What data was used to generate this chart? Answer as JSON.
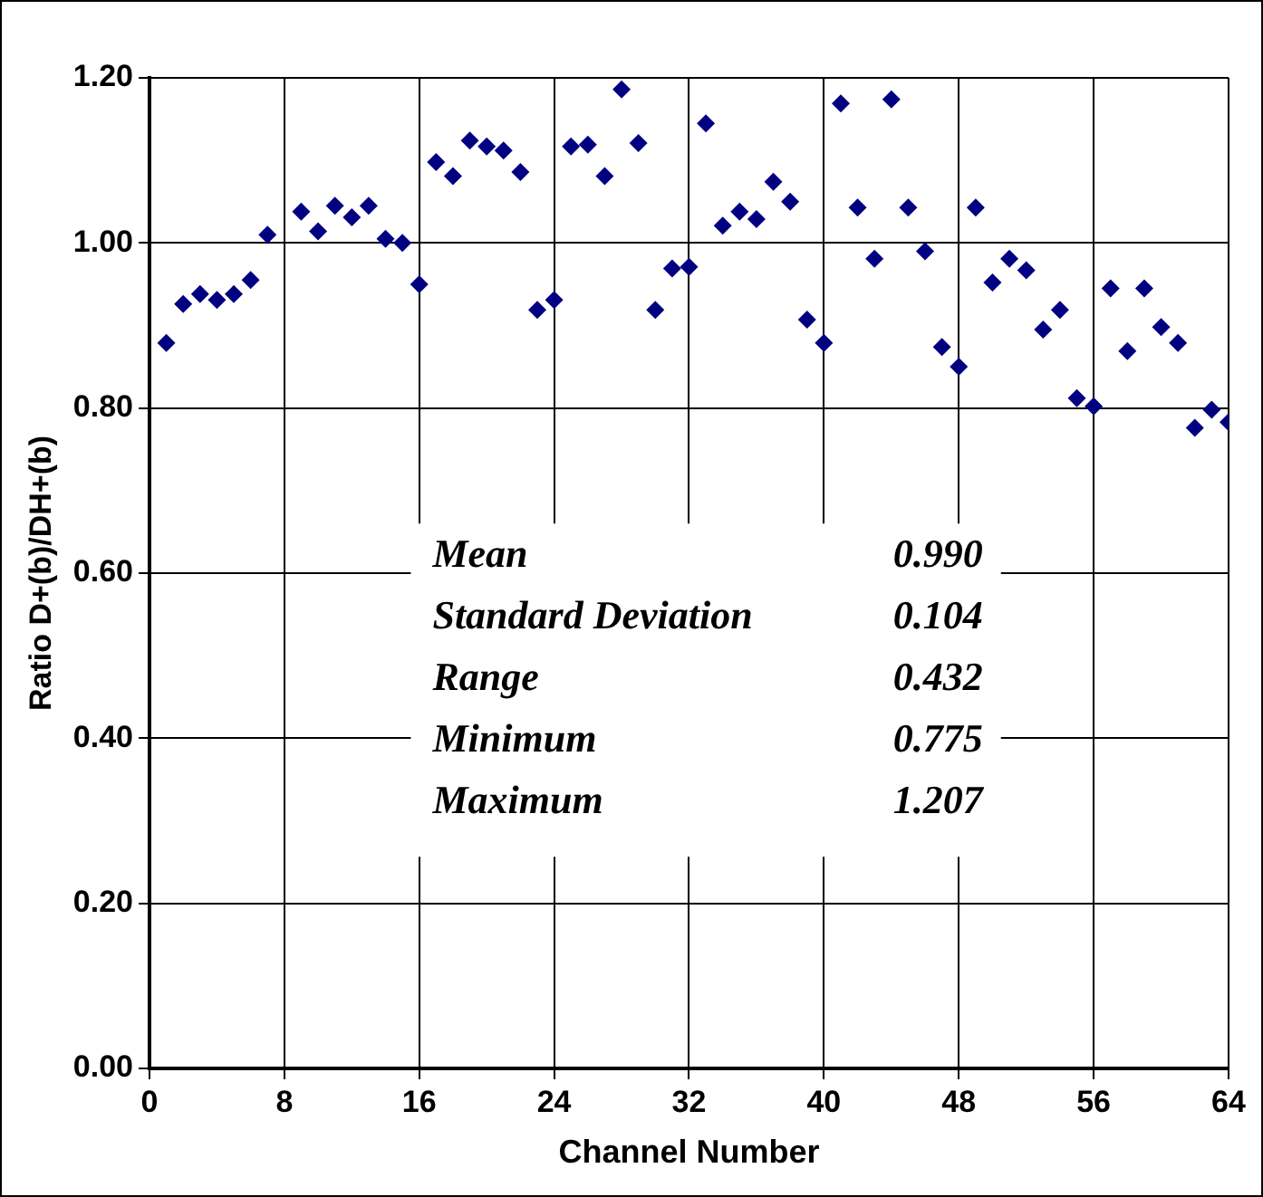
{
  "chart_data": {
    "type": "scatter",
    "xlabel": "Channel Number",
    "ylabel": "Ratio D+(b)/DH+(b)",
    "x": [
      1,
      2,
      3,
      4,
      5,
      6,
      7,
      9,
      10,
      11,
      12,
      13,
      14,
      15,
      16,
      17,
      18,
      19,
      20,
      21,
      22,
      23,
      24,
      25,
      26,
      27,
      28,
      29,
      30,
      31,
      32,
      33,
      34,
      35,
      36,
      37,
      38,
      39,
      40,
      41,
      42,
      43,
      44,
      45,
      46,
      47,
      48,
      49,
      50,
      51,
      52,
      53,
      54,
      55,
      56,
      57,
      58,
      59,
      60,
      61,
      62,
      63,
      64
    ],
    "series": [
      {
        "color": "#000080",
        "values": [
          0.879,
          0.926,
          0.938,
          0.931,
          0.938,
          0.955,
          1.01,
          1.038,
          1.014,
          1.045,
          1.031,
          1.045,
          1.005,
          1.0,
          0.95,
          1.098,
          1.081,
          1.124,
          1.117,
          1.112,
          1.086,
          0.919,
          0.931,
          1.117,
          1.119,
          1.081,
          1.186,
          1.121,
          0.919,
          0.969,
          0.971,
          1.145,
          1.021,
          1.038,
          1.029,
          1.074,
          1.05,
          0.907,
          0.879,
          1.169,
          1.043,
          0.981,
          1.174,
          1.043,
          0.99,
          0.874,
          0.85,
          1.043,
          0.952,
          0.981,
          0.967,
          0.895,
          0.919,
          0.812,
          0.802,
          0.945,
          0.869,
          0.945,
          0.898,
          0.879,
          0.776,
          0.798,
          0.783
        ]
      }
    ],
    "xlim": [
      0,
      64
    ],
    "xticks": [
      0,
      8,
      16,
      24,
      32,
      40,
      48,
      56,
      64
    ],
    "ylim": [
      0,
      1.2
    ],
    "yticks": [
      {
        "value": 0,
        "label": "0.00"
      },
      {
        "value": 0.2,
        "label": "0.20"
      },
      {
        "value": 0.4,
        "label": "0.40"
      },
      {
        "value": 0.6,
        "label": "0.60"
      },
      {
        "value": 0.8,
        "label": "0.80"
      },
      {
        "value": 1.0,
        "label": "1.00"
      },
      {
        "value": 1.2,
        "label": "1.20"
      }
    ],
    "annotations": [
      "Mean 0.990",
      "Standard Deviation 0.104",
      "Range 0.432",
      "Minimum 0.775",
      "Maximum 1.207"
    ],
    "grid": true,
    "marker": "diamond"
  }
}
